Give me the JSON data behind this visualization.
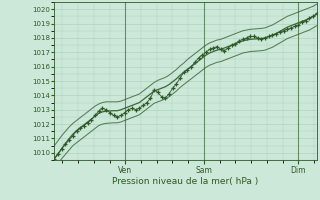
{
  "xlabel": "Pression niveau de la mer( hPa )",
  "bg_color": "#cce8d8",
  "grid_color": "#a8cebb",
  "line_color": "#2d5a27",
  "ylim": [
    1009.5,
    1020.5
  ],
  "yticks": [
    1010,
    1011,
    1012,
    1013,
    1014,
    1015,
    1016,
    1017,
    1018,
    1019,
    1020
  ],
  "day_labels": [
    "Ven",
    "Sam",
    "Dim"
  ],
  "day_positions": [
    0.27,
    0.57,
    0.93
  ],
  "n_points": 72,
  "main_data": [
    1009.6,
    1009.9,
    1010.3,
    1010.6,
    1010.9,
    1011.2,
    1011.5,
    1011.7,
    1011.9,
    1012.1,
    1012.3,
    1012.6,
    1012.9,
    1013.1,
    1013.0,
    1012.8,
    1012.6,
    1012.5,
    1012.6,
    1012.8,
    1013.0,
    1013.1,
    1013.0,
    1013.1,
    1013.3,
    1013.5,
    1013.8,
    1014.4,
    1014.2,
    1013.9,
    1013.8,
    1014.1,
    1014.5,
    1014.8,
    1015.2,
    1015.6,
    1015.8,
    1016.0,
    1016.3,
    1016.6,
    1016.8,
    1017.0,
    1017.2,
    1017.3,
    1017.4,
    1017.2,
    1017.1,
    1017.3,
    1017.5,
    1017.6,
    1017.8,
    1017.9,
    1018.0,
    1018.1,
    1018.1,
    1018.0,
    1017.9,
    1018.0,
    1018.1,
    1018.2,
    1018.3,
    1018.4,
    1018.5,
    1018.6,
    1018.7,
    1018.8,
    1018.9,
    1019.1,
    1019.2,
    1019.4,
    1019.5,
    1019.7
  ],
  "smooth_data": [
    1009.6,
    1009.95,
    1010.3,
    1010.65,
    1011.0,
    1011.3,
    1011.55,
    1011.75,
    1011.95,
    1012.15,
    1012.35,
    1012.55,
    1012.75,
    1012.85,
    1012.9,
    1012.92,
    1012.93,
    1012.93,
    1013.0,
    1013.1,
    1013.2,
    1013.3,
    1013.4,
    1013.5,
    1013.7,
    1013.9,
    1014.1,
    1014.3,
    1014.4,
    1014.5,
    1014.6,
    1014.75,
    1014.95,
    1015.15,
    1015.4,
    1015.6,
    1015.8,
    1016.0,
    1016.2,
    1016.4,
    1016.6,
    1016.8,
    1016.95,
    1017.05,
    1017.15,
    1017.2,
    1017.3,
    1017.4,
    1017.5,
    1017.6,
    1017.7,
    1017.8,
    1017.85,
    1017.9,
    1017.92,
    1017.94,
    1017.96,
    1018.0,
    1018.1,
    1018.2,
    1018.3,
    1018.45,
    1018.6,
    1018.75,
    1018.85,
    1018.95,
    1019.05,
    1019.15,
    1019.25,
    1019.35,
    1019.5,
    1019.65
  ],
  "upper_band": [
    1010.5,
    1010.85,
    1011.2,
    1011.5,
    1011.8,
    1012.05,
    1012.25,
    1012.45,
    1012.65,
    1012.85,
    1013.05,
    1013.25,
    1013.4,
    1013.5,
    1013.55,
    1013.55,
    1013.55,
    1013.55,
    1013.6,
    1013.7,
    1013.8,
    1013.9,
    1014.0,
    1014.1,
    1014.3,
    1014.5,
    1014.7,
    1014.9,
    1015.05,
    1015.15,
    1015.25,
    1015.4,
    1015.6,
    1015.8,
    1016.05,
    1016.25,
    1016.5,
    1016.7,
    1016.9,
    1017.1,
    1017.3,
    1017.5,
    1017.65,
    1017.75,
    1017.85,
    1017.9,
    1018.0,
    1018.1,
    1018.2,
    1018.3,
    1018.4,
    1018.5,
    1018.55,
    1018.6,
    1018.62,
    1018.64,
    1018.66,
    1018.7,
    1018.8,
    1018.9,
    1019.05,
    1019.2,
    1019.35,
    1019.5,
    1019.6,
    1019.7,
    1019.8,
    1019.9,
    1020.0,
    1020.1,
    1020.2,
    1020.35
  ],
  "lower_band": [
    1009.0,
    1009.3,
    1009.6,
    1009.9,
    1010.2,
    1010.5,
    1010.7,
    1010.9,
    1011.1,
    1011.3,
    1011.5,
    1011.7,
    1011.9,
    1012.0,
    1012.05,
    1012.07,
    1012.09,
    1012.09,
    1012.15,
    1012.25,
    1012.35,
    1012.45,
    1012.55,
    1012.65,
    1012.85,
    1013.05,
    1013.25,
    1013.45,
    1013.55,
    1013.65,
    1013.75,
    1013.9,
    1014.1,
    1014.3,
    1014.55,
    1014.75,
    1014.95,
    1015.15,
    1015.35,
    1015.55,
    1015.75,
    1015.95,
    1016.1,
    1016.2,
    1016.3,
    1016.35,
    1016.45,
    1016.55,
    1016.65,
    1016.75,
    1016.85,
    1016.95,
    1017.0,
    1017.05,
    1017.07,
    1017.09,
    1017.11,
    1017.15,
    1017.25,
    1017.35,
    1017.5,
    1017.65,
    1017.8,
    1017.95,
    1018.05,
    1018.15,
    1018.25,
    1018.35,
    1018.45,
    1018.55,
    1018.7,
    1018.85
  ]
}
